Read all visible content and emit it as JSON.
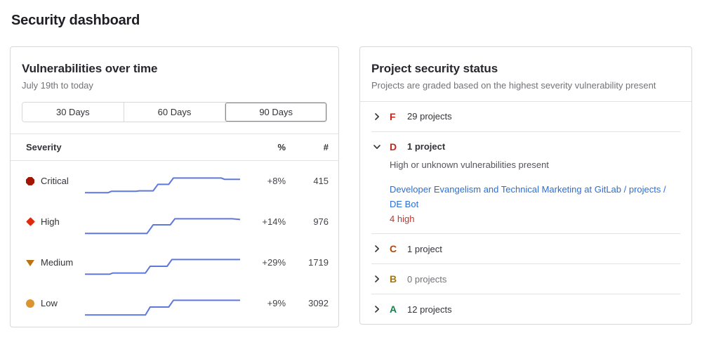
{
  "page": {
    "title": "Security dashboard"
  },
  "left_panel": {
    "title": "Vulnerabilities over time",
    "date_range": "July 19th to today",
    "day_filters": [
      {
        "label": "30 Days",
        "selected": false
      },
      {
        "label": "60 Days",
        "selected": false
      },
      {
        "label": "90 Days",
        "selected": true
      }
    ],
    "table": {
      "headers": {
        "severity": "Severity",
        "percent": "%",
        "count": "#"
      },
      "rows": [
        {
          "severity": "Critical",
          "icon": "critical-severity-icon",
          "color": "#a21500",
          "percent": "+8%",
          "count": "415",
          "sparkline": [
            [
              0,
              85
            ],
            [
              15,
              85
            ],
            [
              17,
              79
            ],
            [
              33,
              79
            ],
            [
              35,
              77
            ],
            [
              44,
              77
            ],
            [
              47,
              48
            ],
            [
              54,
              48
            ],
            [
              57,
              20
            ],
            [
              88,
              20
            ],
            [
              90,
              26
            ],
            [
              100,
              26
            ]
          ]
        },
        {
          "severity": "High",
          "icon": "high-severity-icon",
          "color": "#dd2b0e",
          "percent": "+14%",
          "count": "976",
          "sparkline": [
            [
              0,
              85
            ],
            [
              40,
              85
            ],
            [
              44,
              47
            ],
            [
              55,
              47
            ],
            [
              58,
              20
            ],
            [
              95,
              20
            ],
            [
              100,
              23
            ]
          ]
        },
        {
          "severity": "Medium",
          "icon": "medium-severity-icon",
          "color": "#b97412",
          "percent": "+29%",
          "count": "1719",
          "sparkline": [
            [
              0,
              85
            ],
            [
              16,
              85
            ],
            [
              18,
              80
            ],
            [
              39,
              80
            ],
            [
              42,
              50
            ],
            [
              53,
              50
            ],
            [
              56,
              20
            ],
            [
              100,
              20
            ]
          ]
        },
        {
          "severity": "Low",
          "icon": "low-severity-icon",
          "color": "#d99530",
          "percent": "+9%",
          "count": "3092",
          "sparkline": [
            [
              0,
              85
            ],
            [
              39,
              85
            ],
            [
              42,
              50
            ],
            [
              54,
              50
            ],
            [
              57,
              20
            ],
            [
              100,
              20
            ]
          ]
        }
      ]
    },
    "sparkline_color": "#5f78dc"
  },
  "right_panel": {
    "title": "Project security status",
    "subtitle": "Projects are graded based on the highest severity vulnerability present",
    "link_color": "#2a6fd6",
    "danger_color": "#c0362c",
    "rows": [
      {
        "grade": "F",
        "grade_color": "#c0281e",
        "count": "29 projects",
        "expanded": false,
        "muted": false
      },
      {
        "grade": "D",
        "grade_color": "#c0281e",
        "count": "1 project",
        "expanded": true,
        "muted": false,
        "description": "High or unknown vulnerabilities present",
        "project_link": "Developer Evangelism and Technical Marketing at GitLab / projects / DE Bot",
        "vulnerability_summary": "4 high"
      },
      {
        "grade": "C",
        "grade_color": "#ab4a0e",
        "count": "1 project",
        "expanded": false,
        "muted": false
      },
      {
        "grade": "B",
        "grade_color": "#ab7600",
        "count": "0 projects",
        "expanded": false,
        "muted": true
      },
      {
        "grade": "A",
        "grade_color": "#108548",
        "count": "12 projects",
        "expanded": false,
        "muted": false
      }
    ]
  }
}
